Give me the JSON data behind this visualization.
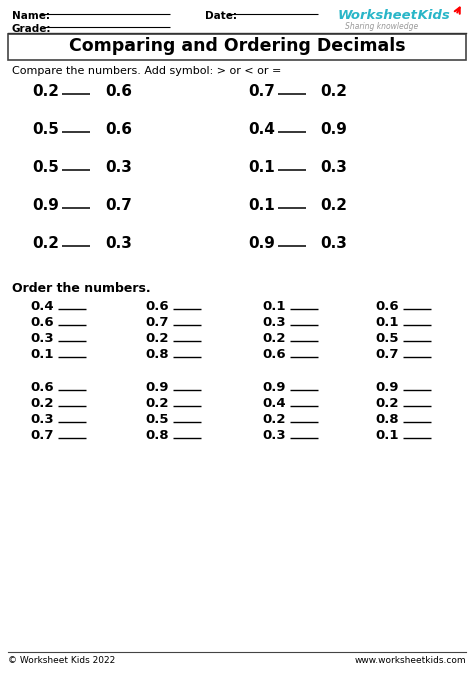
{
  "bg_color": "#ffffff",
  "header_name": "Name:",
  "header_grade": "Grade:",
  "header_date": "Date:",
  "title": "Comparing and Ordering Decimals",
  "section1_instruction": "Compare the numbers. Add symbol: > or < or =",
  "compare_pairs_left": [
    [
      "0.2",
      "0.6"
    ],
    [
      "0.5",
      "0.6"
    ],
    [
      "0.5",
      "0.3"
    ],
    [
      "0.9",
      "0.7"
    ],
    [
      "0.2",
      "0.3"
    ]
  ],
  "compare_pairs_right": [
    [
      "0.7",
      "0.2"
    ],
    [
      "0.4",
      "0.9"
    ],
    [
      "0.1",
      "0.3"
    ],
    [
      "0.1",
      "0.2"
    ],
    [
      "0.9",
      "0.3"
    ]
  ],
  "section2_instruction": "Order the numbers.",
  "order_groups_top": [
    [
      "0.4",
      "0.6",
      "0.3",
      "0.1"
    ],
    [
      "0.6",
      "0.7",
      "0.2",
      "0.8"
    ],
    [
      "0.1",
      "0.3",
      "0.2",
      "0.6"
    ],
    [
      "0.6",
      "0.1",
      "0.5",
      "0.7"
    ]
  ],
  "order_groups_bottom": [
    [
      "0.6",
      "0.2",
      "0.3",
      "0.7"
    ],
    [
      "0.9",
      "0.2",
      "0.5",
      "0.8"
    ],
    [
      "0.9",
      "0.4",
      "0.2",
      "0.3"
    ],
    [
      "0.9",
      "0.2",
      "0.8",
      "0.1"
    ]
  ],
  "footer_left": "© Worksheet Kids 2022",
  "footer_right": "www.worksheetkids.com"
}
